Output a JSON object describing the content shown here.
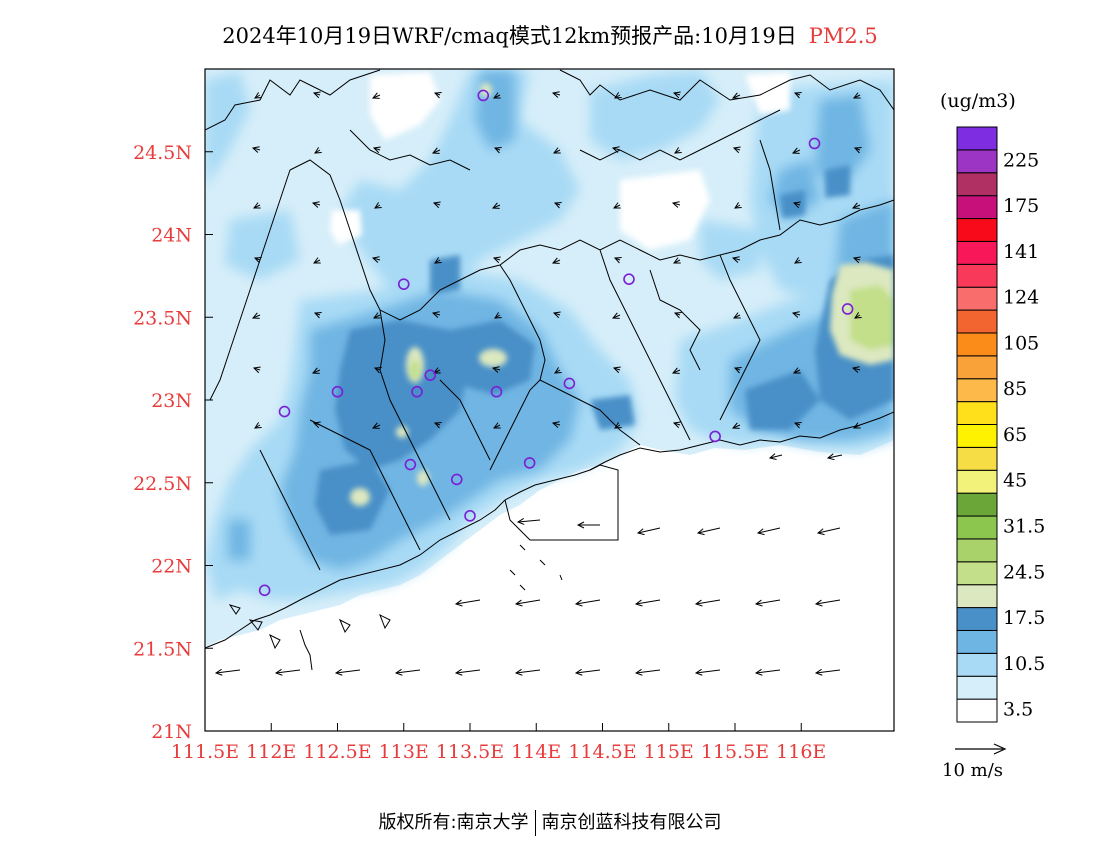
{
  "title": {
    "main": "2024年10月19日WRF/cmaq模式12km预报产品:10月19日",
    "species": "PM2.5"
  },
  "colors": {
    "axis_label": "#e83b3b",
    "title_species": "#e83b3b",
    "station_marker": "#7a1fd6"
  },
  "map": {
    "lon_range": [
      111.5,
      116.7
    ],
    "lat_range": [
      21.0,
      25.0
    ],
    "lon_ticks": [
      "111.5E",
      "112E",
      "112.5E",
      "113E",
      "113.5E",
      "114E",
      "114.5E",
      "115E",
      "115.5E",
      "116E"
    ],
    "lat_ticks": [
      "21N",
      "21.5N",
      "22N",
      "22.5N",
      "23N",
      "23.5N",
      "24N",
      "24.5N"
    ],
    "stations": [
      {
        "lon": 113.6,
        "lat": 24.84
      },
      {
        "lon": 116.1,
        "lat": 24.55
      },
      {
        "lon": 113.0,
        "lat": 23.7
      },
      {
        "lon": 114.7,
        "lat": 23.73
      },
      {
        "lon": 116.35,
        "lat": 23.55
      },
      {
        "lon": 113.2,
        "lat": 23.15
      },
      {
        "lon": 112.5,
        "lat": 23.05
      },
      {
        "lon": 113.1,
        "lat": 23.05
      },
      {
        "lon": 113.7,
        "lat": 23.05
      },
      {
        "lon": 114.25,
        "lat": 23.1
      },
      {
        "lon": 112.1,
        "lat": 22.93
      },
      {
        "lon": 115.35,
        "lat": 22.78
      },
      {
        "lon": 113.05,
        "lat": 22.61
      },
      {
        "lon": 113.95,
        "lat": 22.62
      },
      {
        "lon": 113.4,
        "lat": 22.52
      },
      {
        "lon": 113.5,
        "lat": 22.3
      },
      {
        "lon": 111.95,
        "lat": 21.85
      }
    ]
  },
  "legend": {
    "unit": "(ug/m3)",
    "bins": [
      {
        "color": "#ffffff",
        "label": "3.5"
      },
      {
        "color": "#d6eef9",
        "label": ""
      },
      {
        "color": "#a8daf5",
        "label": "10.5"
      },
      {
        "color": "#6fb5e3",
        "label": ""
      },
      {
        "color": "#4a90c8",
        "label": "17.5"
      },
      {
        "color": "#dce8c0",
        "label": ""
      },
      {
        "color": "#c3df8a",
        "label": "24.5"
      },
      {
        "color": "#a9d26a",
        "label": ""
      },
      {
        "color": "#8cc64e",
        "label": "31.5"
      },
      {
        "color": "#6aa638",
        "label": ""
      },
      {
        "color": "#f2f27a",
        "label": "45"
      },
      {
        "color": "#f7dd45",
        "label": ""
      },
      {
        "color": "#fff200",
        "label": "65"
      },
      {
        "color": "#ffe01a",
        "label": ""
      },
      {
        "color": "#fdb94a",
        "label": "85"
      },
      {
        "color": "#f9a23a",
        "label": ""
      },
      {
        "color": "#fb8c1a",
        "label": "105"
      },
      {
        "color": "#f26530",
        "label": ""
      },
      {
        "color": "#f96d6d",
        "label": "124"
      },
      {
        "color": "#f8395a",
        "label": ""
      },
      {
        "color": "#f8185a",
        "label": "141"
      },
      {
        "color": "#f80a1a",
        "label": ""
      },
      {
        "color": "#c8107a",
        "label": "175"
      },
      {
        "color": "#b03064",
        "label": ""
      },
      {
        "color": "#9c34c4",
        "label": "225"
      },
      {
        "color": "#7e2ee0",
        "label": ""
      }
    ]
  },
  "wind_reference": {
    "label": "10 m/s"
  },
  "footer": {
    "left": "版权所有:南京大学",
    "right": "南京创蓝科技有限公司"
  }
}
